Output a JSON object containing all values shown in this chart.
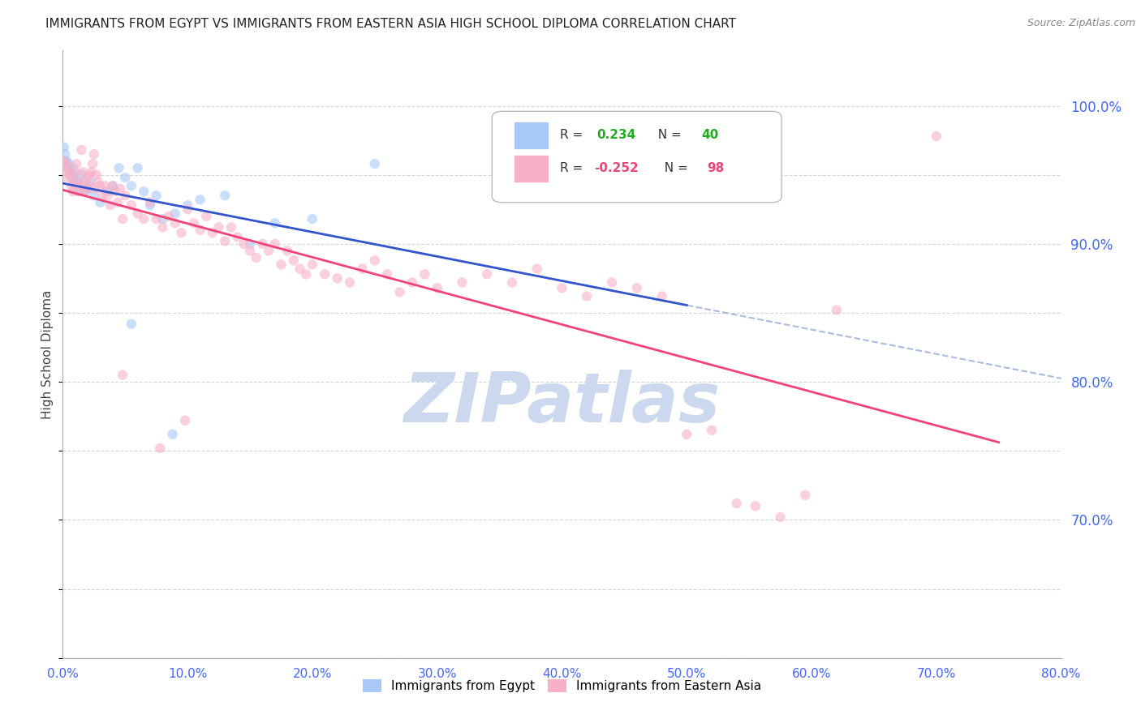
{
  "title": "IMMIGRANTS FROM EGYPT VS IMMIGRANTS FROM EASTERN ASIA HIGH SCHOOL DIPLOMA CORRELATION CHART",
  "source": "Source: ZipAtlas.com",
  "ylabel": "High School Diploma",
  "ytick_labels": [
    "100.0%",
    "90.0%",
    "80.0%",
    "70.0%"
  ],
  "ytick_values": [
    1.0,
    0.9,
    0.8,
    0.7
  ],
  "xmin": 0.0,
  "xmax": 0.8,
  "ymin": 0.6,
  "ymax": 1.04,
  "egypt_color": "#a8c8f8",
  "eastern_asia_color": "#f8b0c8",
  "egypt_line_color": "#3355cc",
  "eastern_asia_line_color": "#ee4477",
  "dash_color": "#aabbdd",
  "background_color": "#ffffff",
  "grid_color": "#cccccc",
  "title_fontsize": 11,
  "axis_label_fontsize": 11,
  "tick_label_color": "#4466ff",
  "watermark_text": "ZIPatlas",
  "watermark_color": "#ccd8ee",
  "watermark_fontsize": 62,
  "egypt_scatter": [
    [
      0.001,
      0.97
    ],
    [
      0.002,
      0.965
    ],
    [
      0.003,
      0.96
    ],
    [
      0.004,
      0.955
    ],
    [
      0.005,
      0.958
    ],
    [
      0.006,
      0.952
    ],
    [
      0.007,
      0.948
    ],
    [
      0.008,
      0.955
    ],
    [
      0.009,
      0.95
    ],
    [
      0.01,
      0.945
    ],
    [
      0.011,
      0.942
    ],
    [
      0.012,
      0.938
    ],
    [
      0.013,
      0.945
    ],
    [
      0.015,
      0.95
    ],
    [
      0.016,
      0.942
    ],
    [
      0.018,
      0.938
    ],
    [
      0.02,
      0.94
    ],
    [
      0.022,
      0.945
    ],
    [
      0.025,
      0.935
    ],
    [
      0.03,
      0.93
    ],
    [
      0.035,
      0.938
    ],
    [
      0.04,
      0.942
    ],
    [
      0.045,
      0.955
    ],
    [
      0.05,
      0.948
    ],
    [
      0.055,
      0.942
    ],
    [
      0.06,
      0.955
    ],
    [
      0.065,
      0.938
    ],
    [
      0.07,
      0.928
    ],
    [
      0.075,
      0.935
    ],
    [
      0.08,
      0.918
    ],
    [
      0.09,
      0.922
    ],
    [
      0.1,
      0.928
    ],
    [
      0.11,
      0.932
    ],
    [
      0.13,
      0.935
    ],
    [
      0.15,
      0.9
    ],
    [
      0.17,
      0.915
    ],
    [
      0.2,
      0.918
    ],
    [
      0.25,
      0.958
    ],
    [
      0.088,
      0.762
    ],
    [
      0.055,
      0.842
    ]
  ],
  "eastern_asia_scatter": [
    [
      0.001,
      0.96
    ],
    [
      0.002,
      0.958
    ],
    [
      0.003,
      0.952
    ],
    [
      0.004,
      0.948
    ],
    [
      0.005,
      0.955
    ],
    [
      0.006,
      0.95
    ],
    [
      0.007,
      0.942
    ],
    [
      0.008,
      0.938
    ],
    [
      0.009,
      0.945
    ],
    [
      0.01,
      0.952
    ],
    [
      0.011,
      0.958
    ],
    [
      0.012,
      0.945
    ],
    [
      0.013,
      0.938
    ],
    [
      0.014,
      0.942
    ],
    [
      0.015,
      0.968
    ],
    [
      0.016,
      0.952
    ],
    [
      0.017,
      0.938
    ],
    [
      0.018,
      0.945
    ],
    [
      0.019,
      0.94
    ],
    [
      0.02,
      0.948
    ],
    [
      0.021,
      0.95
    ],
    [
      0.022,
      0.942
    ],
    [
      0.023,
      0.952
    ],
    [
      0.024,
      0.958
    ],
    [
      0.025,
      0.965
    ],
    [
      0.026,
      0.94
    ],
    [
      0.027,
      0.95
    ],
    [
      0.028,
      0.945
    ],
    [
      0.03,
      0.942
    ],
    [
      0.032,
      0.935
    ],
    [
      0.034,
      0.942
    ],
    [
      0.036,
      0.935
    ],
    [
      0.038,
      0.928
    ],
    [
      0.04,
      0.942
    ],
    [
      0.042,
      0.938
    ],
    [
      0.044,
      0.93
    ],
    [
      0.046,
      0.94
    ],
    [
      0.048,
      0.918
    ],
    [
      0.05,
      0.935
    ],
    [
      0.055,
      0.928
    ],
    [
      0.06,
      0.922
    ],
    [
      0.065,
      0.918
    ],
    [
      0.07,
      0.93
    ],
    [
      0.075,
      0.918
    ],
    [
      0.08,
      0.912
    ],
    [
      0.085,
      0.92
    ],
    [
      0.09,
      0.915
    ],
    [
      0.095,
      0.908
    ],
    [
      0.1,
      0.925
    ],
    [
      0.105,
      0.915
    ],
    [
      0.11,
      0.91
    ],
    [
      0.115,
      0.92
    ],
    [
      0.12,
      0.908
    ],
    [
      0.125,
      0.912
    ],
    [
      0.13,
      0.902
    ],
    [
      0.135,
      0.912
    ],
    [
      0.14,
      0.905
    ],
    [
      0.145,
      0.9
    ],
    [
      0.15,
      0.895
    ],
    [
      0.155,
      0.89
    ],
    [
      0.16,
      0.9
    ],
    [
      0.165,
      0.895
    ],
    [
      0.17,
      0.9
    ],
    [
      0.175,
      0.885
    ],
    [
      0.18,
      0.895
    ],
    [
      0.185,
      0.888
    ],
    [
      0.19,
      0.882
    ],
    [
      0.195,
      0.878
    ],
    [
      0.2,
      0.885
    ],
    [
      0.21,
      0.878
    ],
    [
      0.22,
      0.875
    ],
    [
      0.23,
      0.872
    ],
    [
      0.24,
      0.882
    ],
    [
      0.25,
      0.888
    ],
    [
      0.26,
      0.878
    ],
    [
      0.27,
      0.865
    ],
    [
      0.28,
      0.872
    ],
    [
      0.29,
      0.878
    ],
    [
      0.3,
      0.868
    ],
    [
      0.32,
      0.872
    ],
    [
      0.34,
      0.878
    ],
    [
      0.36,
      0.872
    ],
    [
      0.38,
      0.882
    ],
    [
      0.4,
      0.868
    ],
    [
      0.42,
      0.862
    ],
    [
      0.44,
      0.872
    ],
    [
      0.46,
      0.868
    ],
    [
      0.48,
      0.862
    ],
    [
      0.5,
      0.762
    ],
    [
      0.52,
      0.765
    ],
    [
      0.54,
      0.712
    ],
    [
      0.555,
      0.71
    ],
    [
      0.575,
      0.702
    ],
    [
      0.595,
      0.718
    ],
    [
      0.62,
      0.852
    ],
    [
      0.048,
      0.805
    ],
    [
      0.078,
      0.752
    ],
    [
      0.098,
      0.772
    ],
    [
      0.7,
      0.978
    ]
  ]
}
